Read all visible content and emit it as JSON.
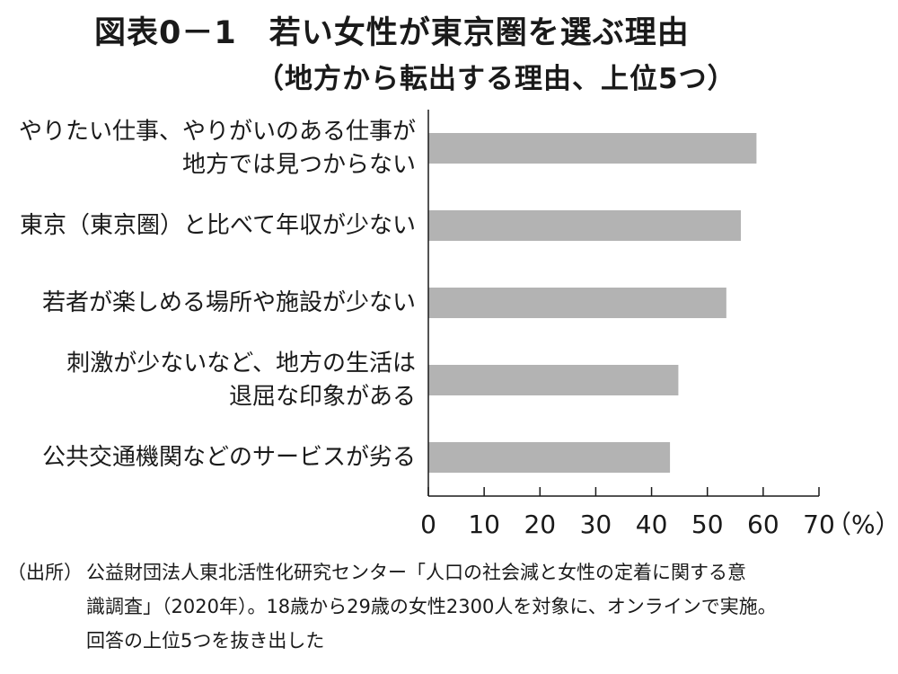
{
  "chart_data": {
    "type": "bar",
    "orientation": "horizontal",
    "title": "図表0－1　若い女性が東京圏を選ぶ理由",
    "subtitle": "（地方から転出する理由、上位5つ）",
    "categories": [
      [
        "やりたい仕事、やりがいのある仕事が",
        "地方では見つからない"
      ],
      [
        "東京（東京圏）と比べて年収が少ない"
      ],
      [
        "若者が楽しめる場所や施設が少ない"
      ],
      [
        "刺激が少ないなど、地方の生活は",
        "退屈な印象がある"
      ],
      [
        "公共交通機関などのサービスが劣る"
      ]
    ],
    "values": [
      58.8,
      56.0,
      53.4,
      44.8,
      43.3
    ],
    "xlim": [
      0,
      70
    ],
    "xticks": [
      0,
      10,
      20,
      30,
      40,
      50,
      60,
      70
    ],
    "unit_label": "（%）",
    "grid": false,
    "bar_color": "#b3b3b3"
  },
  "source": {
    "prefix": "（出所）",
    "lines": [
      "公益財団法人東北活性化研究センター「人口の社会減と女性の定着に関する意",
      "識調査」（2020年）。18歳から29歳の女性2300人を対象に、オンラインで実施。",
      "回答の上位5つを抜き出した"
    ]
  }
}
